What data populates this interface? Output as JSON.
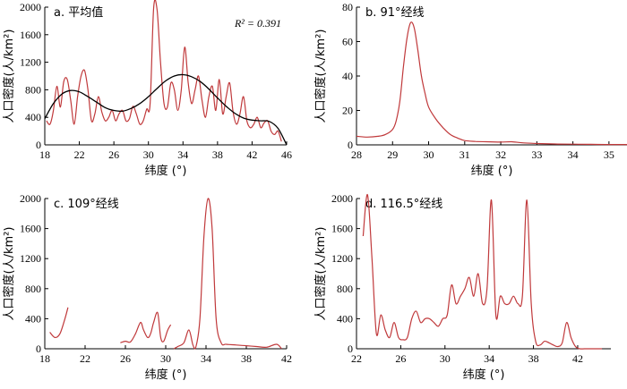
{
  "chart_data": [
    {
      "type": "line",
      "title": "a. 平均值",
      "annotation": "R² = 0.391",
      "xlabel": "纬度 (°)",
      "ylabel": "人口密度(人/km²)",
      "xlim": [
        18,
        46
      ],
      "ylim": [
        0,
        2000
      ],
      "xticks": [
        "18",
        "22",
        "26",
        "30",
        "34",
        "38",
        "42",
        "46"
      ],
      "yticks": [
        "0",
        "400",
        "800",
        "1200",
        "1600",
        "2000"
      ],
      "series": [
        {
          "x": [
            18.2,
            18.6,
            19.0,
            19.4,
            19.8,
            20.2,
            20.6,
            21.0,
            21.4,
            21.8,
            22.2,
            22.6,
            23.0,
            23.4,
            23.8,
            24.2,
            24.6,
            25.0,
            25.4,
            25.8,
            26.2,
            26.6,
            27.0,
            27.4,
            27.8,
            28.2,
            28.6,
            29.0,
            29.4,
            29.8,
            30.2,
            30.6,
            31.0,
            31.4,
            31.8,
            32.2,
            32.6,
            33.0,
            33.4,
            33.8,
            34.2,
            34.6,
            35.0,
            35.4,
            35.8,
            36.2,
            36.6,
            37.0,
            37.4,
            37.8,
            38.2,
            38.6,
            39.0,
            39.4,
            39.8,
            40.2,
            40.6,
            41.0,
            41.4,
            41.8,
            42.2,
            42.6,
            43.0,
            43.4,
            43.8,
            44.2,
            44.6,
            45.0,
            45.4
          ],
          "y": [
            350,
            300,
            500,
            850,
            550,
            920,
            950,
            650,
            300,
            700,
            1000,
            1080,
            800,
            350,
            450,
            700,
            480,
            350,
            400,
            500,
            350,
            450,
            500,
            350,
            380,
            560,
            450,
            300,
            350,
            520,
            600,
            1980,
            1960,
            1200,
            600,
            550,
            900,
            800,
            500,
            800,
            1420,
            900,
            600,
            800,
            1000,
            650,
            400,
            700,
            850,
            500,
            950,
            450,
            700,
            900,
            480,
            300,
            450,
            700,
            350,
            250,
            300,
            400,
            250,
            320,
            350,
            200,
            150,
            200,
            50
          ]
        },
        {
          "x": [
            18,
            19,
            20,
            21,
            22,
            23,
            24,
            25,
            26,
            27,
            28,
            29,
            30,
            31,
            32,
            33,
            34,
            35,
            36,
            37,
            38,
            39,
            40,
            41,
            42,
            43,
            44,
            45,
            46
          ],
          "y": [
            380,
            600,
            740,
            790,
            770,
            700,
            620,
            540,
            500,
            490,
            530,
            600,
            700,
            820,
            930,
            1000,
            1020,
            990,
            920,
            810,
            680,
            560,
            460,
            390,
            360,
            350,
            340,
            240,
            0
          ]
        }
      ]
    },
    {
      "type": "line",
      "title": "b. 91°经线",
      "xlabel": "纬度 (°)",
      "ylabel": "人口密度(人/km²)",
      "xlim": [
        28,
        35.5
      ],
      "ylim": [
        0,
        80
      ],
      "xticks": [
        "28",
        "29",
        "30",
        "31",
        "32",
        "33",
        "34",
        "35"
      ],
      "yticks": [
        "0",
        "20",
        "40",
        "60",
        "80"
      ],
      "series": [
        {
          "x": [
            28.0,
            28.3,
            28.6,
            28.8,
            29.0,
            29.1,
            29.2,
            29.3,
            29.4,
            29.5,
            29.6,
            29.7,
            29.8,
            29.9,
            30.0,
            30.2,
            30.4,
            30.6,
            30.8,
            31.0,
            31.3,
            31.6,
            32.0,
            32.3,
            32.6,
            33.0,
            33.5,
            34.0,
            34.5,
            35.0,
            35.5
          ],
          "y": [
            5,
            4.5,
            5,
            6,
            9,
            14,
            25,
            45,
            62,
            71,
            68,
            55,
            40,
            30,
            22,
            15,
            10,
            6,
            4,
            2.5,
            2,
            1.8,
            1.6,
            1.8,
            1.2,
            0.8,
            0.5,
            0.4,
            0.3,
            0.2,
            0.2
          ]
        }
      ]
    },
    {
      "type": "line",
      "title": "c. 109°经线",
      "xlabel": "纬度 (°)",
      "ylabel": "人口密度(人/km²)",
      "xlim": [
        18,
        42
      ],
      "ylim": [
        0,
        2000
      ],
      "xticks": [
        "18",
        "22",
        "26",
        "30",
        "34",
        "38",
        "42"
      ],
      "yticks": [
        "0",
        "400",
        "800",
        "1200",
        "1600",
        "2000"
      ],
      "series": [
        {
          "x": [
            18.5,
            19.0,
            19.5,
            20.0,
            20.3
          ],
          "y": [
            220,
            150,
            200,
            400,
            550
          ]
        },
        {
          "x": [
            25.5,
            26.0,
            26.5,
            27.0,
            27.5,
            27.8,
            28.2,
            28.5,
            28.8,
            29.2,
            29.5,
            29.8,
            30.2,
            30.5
          ],
          "y": [
            80,
            100,
            90,
            200,
            350,
            250,
            150,
            200,
            350,
            480,
            150,
            100,
            250,
            320
          ]
        },
        {
          "x": [
            30.8,
            31.2,
            31.8,
            32.3,
            32.7,
            33.0,
            33.4,
            33.8,
            34.2,
            34.6,
            35.0,
            35.5,
            36.0,
            37.0,
            38.0,
            39.0,
            40.0,
            41.0,
            41.5
          ],
          "y": [
            0,
            30,
            80,
            250,
            50,
            30,
            400,
            1500,
            2000,
            1600,
            400,
            80,
            60,
            50,
            40,
            30,
            20,
            60,
            0
          ]
        }
      ]
    },
    {
      "type": "line",
      "title": "d. 116.5°经线",
      "xlabel": "纬度 (°)",
      "ylabel": "人口密度(人/km²)",
      "xlim": [
        22,
        45
      ],
      "ylim": [
        0,
        2000
      ],
      "xticks": [
        "22",
        "26",
        "30",
        "34",
        "38",
        "42"
      ],
      "yticks": [
        "0",
        "400",
        "800",
        "1200",
        "1600",
        "2000"
      ],
      "series": [
        {
          "x": [
            22.6,
            23.0,
            23.4,
            23.8,
            24.2,
            24.6,
            25.0,
            25.4,
            25.8,
            26.2,
            26.6,
            27.0,
            27.4,
            27.8,
            28.2,
            28.6,
            29.0,
            29.4,
            29.8,
            30.2,
            30.6,
            31.0,
            31.4,
            31.8,
            32.2,
            32.6,
            33.0,
            33.4,
            33.8,
            34.2,
            34.6,
            35.0,
            35.4,
            35.8,
            36.2,
            36.6,
            37.0,
            37.4,
            37.8,
            38.2,
            38.6,
            39.0,
            39.4,
            39.8,
            40.2,
            40.6,
            41.0,
            41.4,
            41.8,
            42.2,
            42.6,
            43.0,
            43.4,
            43.8,
            44.2
          ],
          "y": [
            1500,
            2050,
            1200,
            200,
            450,
            250,
            150,
            350,
            150,
            120,
            150,
            400,
            500,
            350,
            400,
            400,
            350,
            300,
            400,
            450,
            850,
            600,
            700,
            800,
            950,
            700,
            1000,
            600,
            800,
            1980,
            450,
            700,
            600,
            600,
            700,
            600,
            700,
            1980,
            600,
            100,
            50,
            100,
            80,
            50,
            30,
            80,
            350,
            150,
            30,
            0,
            0,
            0,
            0,
            0,
            0
          ]
        }
      ]
    }
  ]
}
